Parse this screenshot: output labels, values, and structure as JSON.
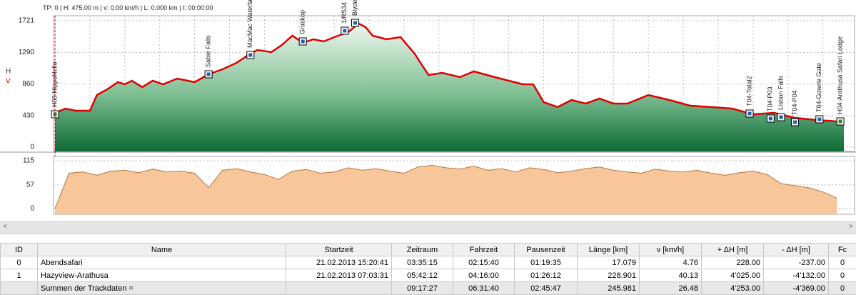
{
  "status": "TP: 0 | H: 475.00 m | v: 0.00 km/h | L: 0.000 km | t: 00:00:00",
  "axis_letters": [
    "H",
    "V"
  ],
  "chart_data": [
    {
      "type": "area",
      "color": "#e00000",
      "fill": "#3d9a63",
      "x": [
        0,
        3,
        6,
        10,
        12,
        15,
        18,
        20,
        22,
        25,
        28,
        31,
        35,
        40,
        44,
        48,
        52,
        56,
        58,
        62,
        65,
        68,
        71,
        74,
        77,
        80,
        84,
        87,
        89,
        91,
        95,
        99,
        103,
        107,
        111,
        116,
        120,
        126,
        130,
        134,
        137,
        140,
        144,
        148,
        152,
        156,
        160,
        164,
        170,
        176,
        182,
        188,
        194,
        200,
        206,
        212,
        218,
        224,
        226
      ],
      "values": [
        467,
        525,
        496,
        496,
        710,
        788,
        885,
        856,
        904,
        817,
        904,
        856,
        933,
        885,
        992,
        1060,
        1147,
        1274,
        1322,
        1293,
        1390,
        1517,
        1420,
        1468,
        1439,
        1497,
        1565,
        1682,
        1633,
        1517,
        1468,
        1497,
        1274,
        982,
        1011,
        953,
        1031,
        953,
        904,
        856,
        856,
        613,
        545,
        642,
        593,
        661,
        593,
        593,
        710,
        642,
        564,
        545,
        525,
        447,
        467,
        399,
        370,
        350,
        370
      ],
      "xlim": [
        0,
        226
      ],
      "ylim": [
        0,
        1721
      ],
      "xticks": [
        0,
        10,
        20,
        30,
        40,
        50,
        60,
        70,
        80,
        90,
        100,
        110,
        120,
        130,
        140,
        150,
        160,
        170,
        180,
        190,
        200,
        210,
        220
      ],
      "yticks": [
        0,
        430,
        860,
        1290,
        1721
      ],
      "grid": true,
      "waypoints": [
        {
          "label": "H03-HippoHello",
          "x": 0,
          "y": 447
        },
        {
          "label": "Sabie Falls",
          "x": 44,
          "y": 992
        },
        {
          "label": "MacMac Waterfall",
          "x": 56,
          "y": 1254
        },
        {
          "label": "Graskop",
          "x": 71,
          "y": 1439
        },
        {
          "label": "1/RS34",
          "x": 83,
          "y": 1585
        },
        {
          "label": "Blyde River Canyon",
          "x": 86,
          "y": 1692
        },
        {
          "label": "T04-Total2",
          "x": 199,
          "y": 457
        },
        {
          "label": "T04-P03",
          "x": 205,
          "y": 389
        },
        {
          "label": "Lisbon Falls",
          "x": 208,
          "y": 408
        },
        {
          "label": "T04-P04",
          "x": 212,
          "y": 340
        },
        {
          "label": "T04-Gowrie Gate",
          "x": 219,
          "y": 379
        },
        {
          "label": "H04-Arathusa Safari Lodge",
          "x": 225,
          "y": 350
        }
      ]
    },
    {
      "type": "area",
      "color": "#b8753a",
      "fill": "#f7c79b",
      "x": [
        0,
        4,
        8,
        12,
        16,
        20,
        24,
        28,
        32,
        36,
        40,
        44,
        48,
        52,
        56,
        60,
        64,
        68,
        72,
        76,
        80,
        84,
        88,
        92,
        96,
        100,
        104,
        108,
        112,
        116,
        120,
        124,
        128,
        132,
        136,
        140,
        144,
        148,
        152,
        156,
        160,
        164,
        168,
        172,
        176,
        180,
        184,
        188,
        192,
        196,
        200,
        204,
        208,
        212,
        216,
        220,
        224
      ],
      "values": [
        0,
        85,
        88,
        80,
        90,
        92,
        86,
        95,
        88,
        90,
        85,
        50,
        92,
        96,
        88,
        82,
        70,
        90,
        94,
        85,
        88,
        98,
        92,
        96,
        90,
        85,
        100,
        104,
        98,
        95,
        102,
        92,
        96,
        88,
        98,
        94,
        86,
        90,
        96,
        100,
        92,
        88,
        85,
        95,
        90,
        88,
        92,
        85,
        80,
        86,
        90,
        82,
        60,
        55,
        50,
        40,
        25
      ],
      "xlim": [
        0,
        226
      ],
      "ylim": [
        0,
        115
      ],
      "yticks": [
        0,
        57,
        115
      ],
      "grid": true
    }
  ],
  "table": {
    "columns": [
      "ID",
      "Name",
      "Startzeit",
      "Zeitraum",
      "Fahrzeit",
      "Pausenzeit",
      "Länge  [km]",
      "v  [km/h]",
      "+ ΔH  [m]",
      "- ΔH  [m]",
      "Fc"
    ],
    "rows": [
      [
        "0",
        "Abendsafari",
        "21.02.2013 15:20:41",
        "03:35:15",
        "02:15:40",
        "01:19:35",
        "17.079",
        "4.76",
        "228.00",
        "-237.00",
        "0"
      ],
      [
        "1",
        "Hazyview-Arathusa",
        "21.02.2013 07:03:31",
        "05:42:12",
        "04:16:00",
        "01:26:12",
        "228.901",
        "40.13",
        "4'025.00",
        "-4'132.00",
        "0"
      ],
      [
        "",
        "Summen der Trackdaten =",
        "",
        "09:17:27",
        "06:31:40",
        "02:45:47",
        "245.981",
        "26.48",
        "4'253.00",
        "-4'369.00",
        "0"
      ]
    ]
  }
}
